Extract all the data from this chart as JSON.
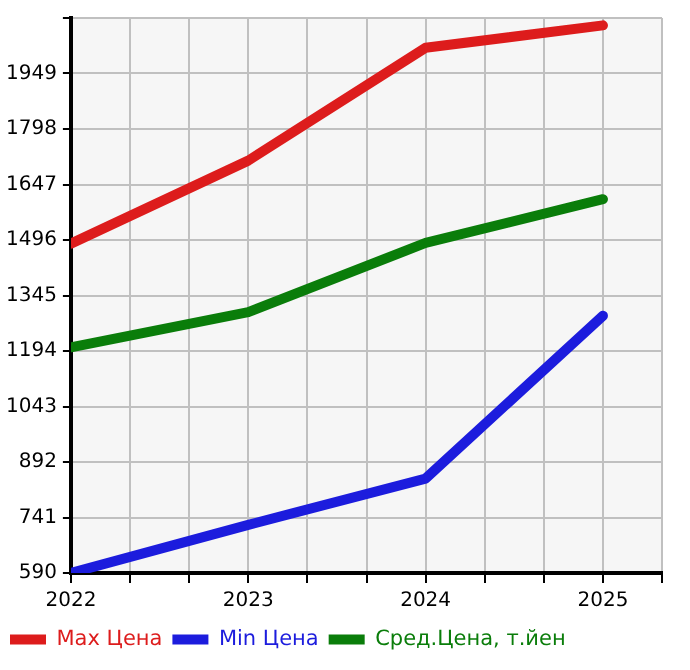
{
  "chart_data": {
    "type": "line",
    "x": [
      2022,
      2023,
      2024,
      2025
    ],
    "series": [
      {
        "name": "Max Цена",
        "color": "#dd1c1c",
        "values": [
          1486,
          1712,
          2019,
          2080
        ]
      },
      {
        "name": "Min Цена",
        "color": "#1c1cdd",
        "values": [
          590,
          721,
          847,
          1290
        ]
      },
      {
        "name": "Сред.Цена, т.йен",
        "color": "#0a7d0a",
        "values": [
          1204,
          1300,
          1488,
          1607
        ]
      }
    ],
    "xlim": [
      2022,
      2025.333
    ],
    "xticks": [
      2022,
      {
        "value": 2022.333,
        "label": null
      },
      {
        "value": 2022.667,
        "label": null
      },
      2023,
      {
        "value": 2023.333,
        "label": null
      },
      {
        "value": 2023.667,
        "label": null
      },
      2024,
      {
        "value": 2024.333,
        "label": null
      },
      {
        "value": 2024.667,
        "label": null
      },
      2025,
      {
        "value": 2025.333,
        "label": null
      }
    ],
    "ylim": [
      590,
      2100
    ],
    "yticks": [
      590,
      741,
      892,
      1043,
      1194,
      1345,
      1496,
      1647,
      1798,
      1949,
      {
        "value": 2100,
        "label": null
      }
    ],
    "grid": true,
    "legend": "bottom",
    "marker": "none",
    "line_style": "solid"
  }
}
